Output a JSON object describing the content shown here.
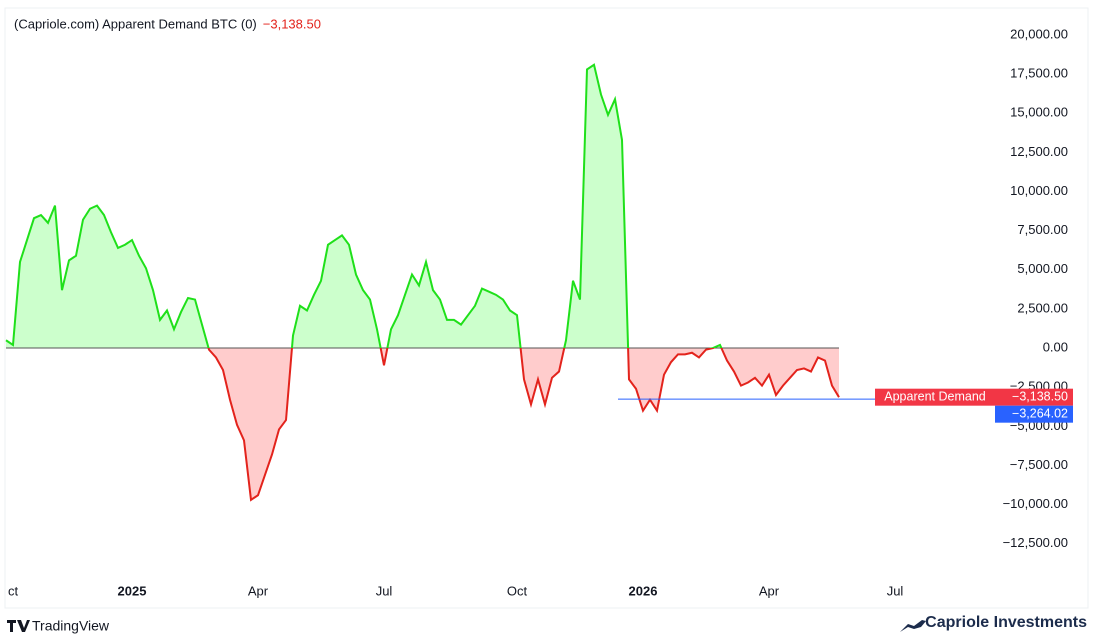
{
  "chart_data": {
    "type": "area",
    "title": "(Capriole.com) Apparent Demand BTC (0)",
    "title_value": {
      "value": -3138.5,
      "label": "−3,138.50"
    },
    "series": [
      {
        "name": "Apparent Demand",
        "color_positive": "#1fe01a",
        "color_negative": "#e3231c",
        "fill_positive": "#ccffcc",
        "fill_negative": "#ffcccc",
        "values": [
          500,
          200,
          5500,
          6900,
          8300,
          8500,
          8000,
          9100,
          3700,
          5600,
          5900,
          8200,
          8900,
          9100,
          8500,
          7400,
          6400,
          6600,
          6900,
          5900,
          5100,
          3700,
          1800,
          2400,
          1200,
          2300,
          3200,
          3100,
          1500,
          -100,
          -600,
          -1400,
          -3300,
          -4900,
          -5900,
          -9700,
          -9400,
          -8100,
          -6800,
          -5200,
          -4600,
          800,
          2700,
          2400,
          3400,
          4300,
          6600,
          6900,
          7200,
          6600,
          4700,
          3700,
          3100,
          1200,
          -1100,
          1200,
          2100,
          3400,
          4700,
          4000,
          5500,
          3700,
          3100,
          1800,
          1800,
          1500,
          2100,
          2700,
          3800,
          3600,
          3400,
          3100,
          2400,
          2100,
          -2000,
          -3600,
          -2000,
          -3600,
          -1900,
          -1500,
          500,
          4300,
          3100,
          17800,
          18100,
          16200,
          14900,
          15900,
          13300,
          -2000,
          -2600,
          -4000,
          -3300,
          -4000,
          -1700,
          -900,
          -400,
          -400,
          -300,
          -600,
          -100,
          0,
          200,
          -800,
          -1500,
          -2400,
          -2200,
          -1900,
          -2400,
          -1700,
          -3000,
          -2400,
          -1900,
          -1400,
          -1300,
          -1500,
          -600,
          -800,
          -2400,
          -3138.5,
          null,
          null,
          null,
          null,
          null,
          null,
          null,
          null,
          null,
          null,
          null,
          null,
          null,
          null,
          null,
          null,
          null,
          null,
          null,
          null,
          null
        ],
        "last_label": {
          "value": -3138.5,
          "label": "−3,138.50",
          "color": "#f23645"
        }
      }
    ],
    "reference_line": {
      "value": -3264.02,
      "label": "−3,264.02",
      "color": "#2962ff"
    },
    "categories": [
      null,
      "ct",
      null,
      null,
      null,
      null,
      null,
      null,
      null,
      null,
      null,
      null,
      null,
      null,
      null,
      null,
      null,
      null,
      "2025",
      null,
      null,
      null,
      null,
      null,
      null,
      null,
      null,
      null,
      null,
      null,
      null,
      null,
      null,
      null,
      null,
      null,
      "Apr",
      null,
      null,
      null,
      null,
      null,
      null,
      null,
      null,
      null,
      null,
      null,
      null,
      null,
      null,
      null,
      null,
      null,
      "Jul",
      null,
      null,
      null,
      null,
      null,
      null,
      null,
      null,
      null,
      null,
      null,
      null,
      null,
      null,
      null,
      null,
      null,
      null,
      "Oct",
      null,
      null,
      null,
      null,
      null,
      null,
      null,
      null,
      null,
      null,
      null,
      null,
      null,
      null,
      null,
      null,
      null,
      "2026",
      null,
      null,
      null,
      null,
      null,
      null,
      null,
      null,
      null,
      null,
      null,
      null,
      null,
      null,
      null,
      null,
      null,
      "Apr",
      null,
      null,
      null,
      null,
      null,
      null,
      null,
      null,
      null,
      null,
      null,
      null,
      null,
      null,
      null,
      null,
      null,
      "Jul",
      null,
      null,
      null,
      null,
      null,
      null,
      null,
      null,
      null,
      null,
      null,
      null,
      null
    ],
    "ylim": [
      -14500,
      21600
    ],
    "yticks": [
      {
        "value": 20000,
        "label": "20,000.00"
      },
      {
        "value": 17500,
        "label": "17,500.00"
      },
      {
        "value": 15000,
        "label": "15,000.00"
      },
      {
        "value": 12500,
        "label": "12,500.00"
      },
      {
        "value": 10000,
        "label": "10,000.00"
      },
      {
        "value": 7500,
        "label": "7,500.00"
      },
      {
        "value": 5000,
        "label": "5,000.00"
      },
      {
        "value": 2500,
        "label": "2,500.00"
      },
      {
        "value": 0,
        "label": "0.00"
      },
      {
        "value": -2500,
        "label": "−2,500.00"
      },
      {
        "value": -5000,
        "label": "−5,000.00"
      },
      {
        "value": -7500,
        "label": "−7,500.00"
      },
      {
        "value": -10000,
        "label": "−10,000.00"
      },
      {
        "value": -12500,
        "label": "−12,500.00"
      }
    ],
    "grid": false
  },
  "branding": {
    "left": "TradingView",
    "right": "Capriole Investments"
  }
}
